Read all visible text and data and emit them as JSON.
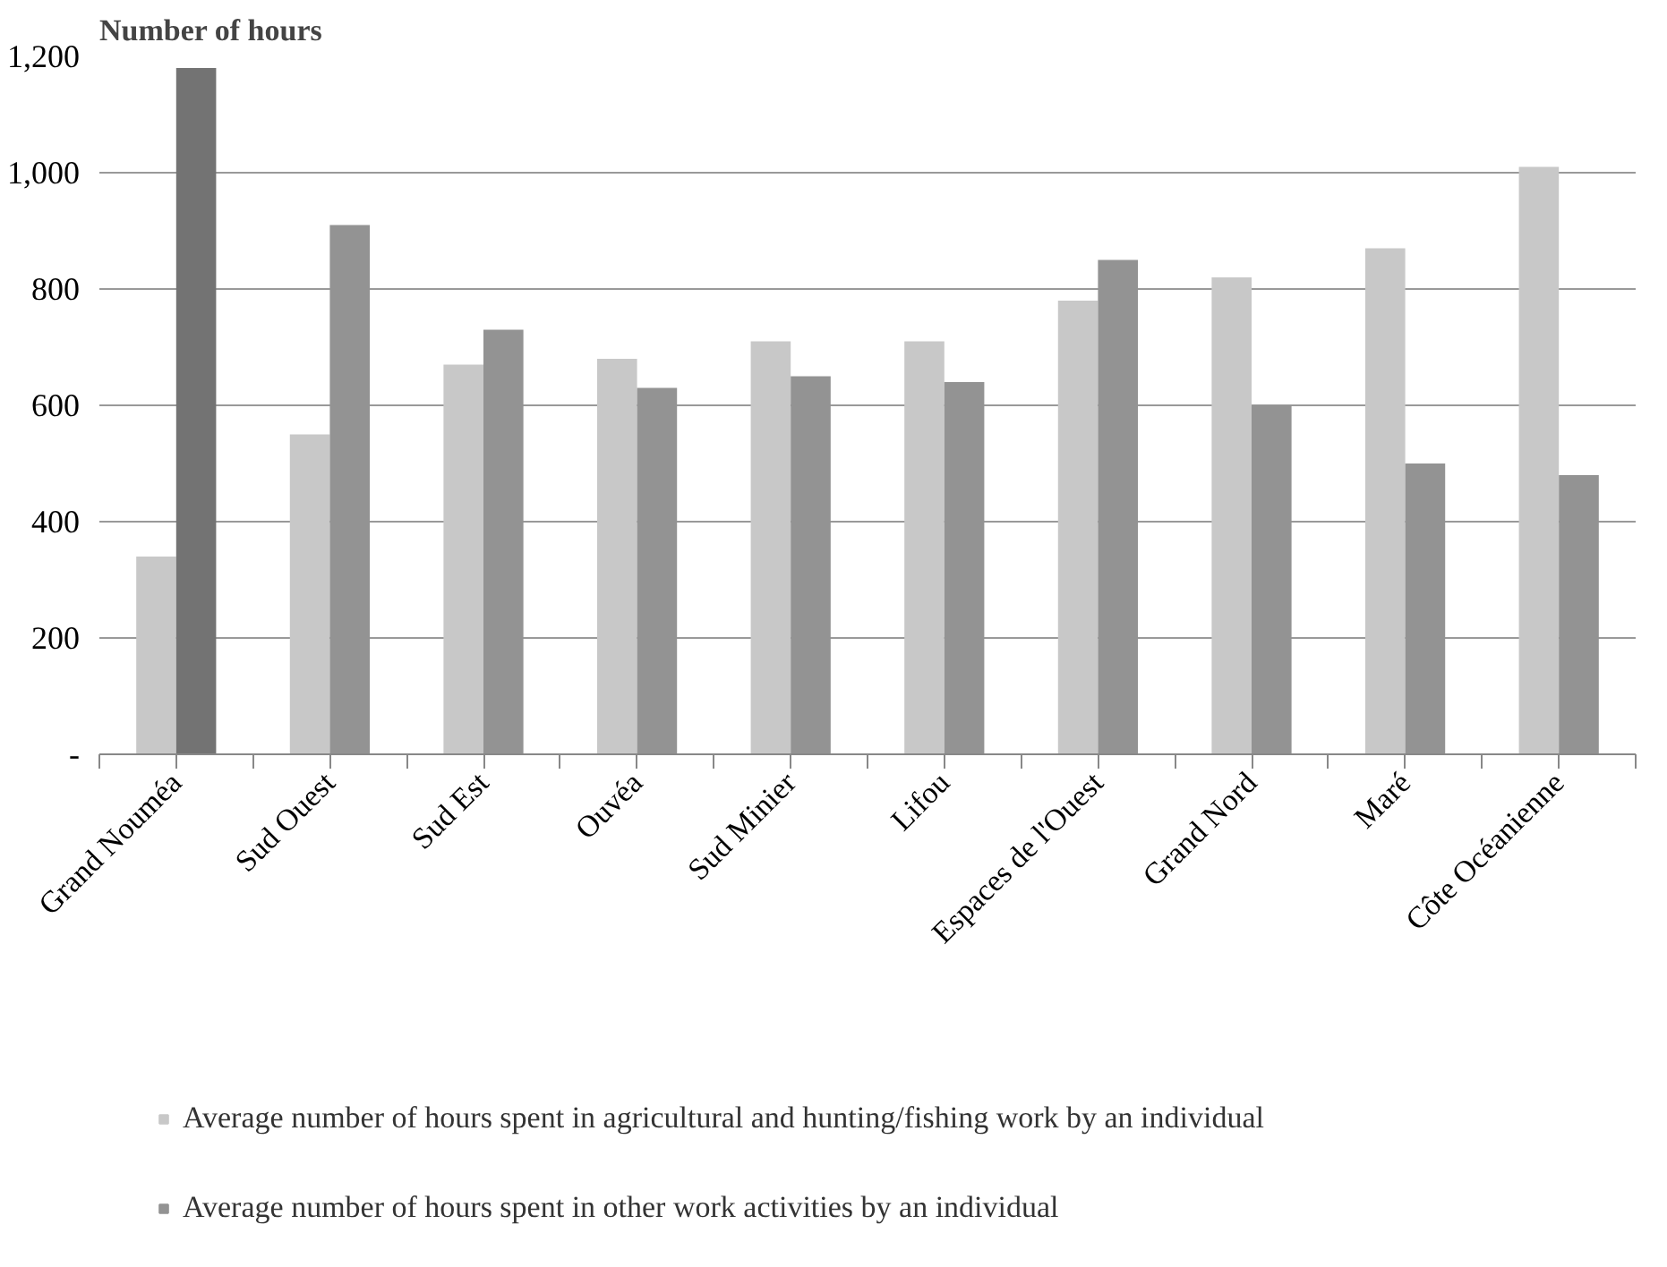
{
  "chart_data": {
    "type": "bar",
    "ylabel": "Number of hours",
    "categories": [
      "Grand Nouméa",
      "Sud Ouest",
      "Sud Est",
      "Ouvéa",
      "Sud Minier",
      "Lifou",
      "Espaces de l'Ouest",
      "Grand Nord",
      "Maré",
      "Côte Océanienne"
    ],
    "series": [
      {
        "name": "Average number of hours spent in agricultural and hunting/fishing work by an individual",
        "color": "#c8c8c8",
        "values": [
          340,
          550,
          670,
          680,
          710,
          710,
          780,
          820,
          870,
          1010
        ]
      },
      {
        "name": "Average number of hours spent in other work activities by an individual",
        "color": "#939393",
        "colors": [
          "#737373",
          "#939393",
          "#939393",
          "#939393",
          "#939393",
          "#939393",
          "#939393",
          "#939393",
          "#939393",
          "#939393"
        ],
        "values": [
          1180,
          910,
          730,
          630,
          650,
          640,
          850,
          600,
          500,
          480
        ]
      }
    ],
    "ylim": [
      0,
      1200
    ],
    "yticks": [
      {
        "value": 0,
        "label": "-"
      },
      200,
      400,
      600,
      800,
      {
        "value": 1000,
        "label": "1,000"
      },
      {
        "value": 1200,
        "label": "1,200"
      }
    ],
    "grid": "y",
    "legend": "bottom"
  }
}
